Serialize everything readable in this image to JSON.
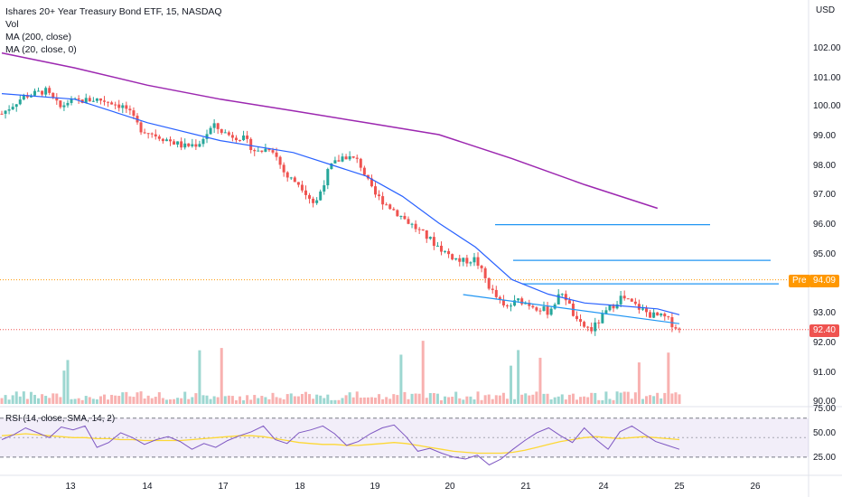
{
  "legend": {
    "title": "Ishares 20+ Year Treasury Bond ETF, 15, NASDAQ",
    "vol": "Vol",
    "ma200": "MA (200, close)",
    "ma20": "MA (20, close, 0)"
  },
  "rsi_legend": "RSI (14, close, SMA, 14, 2)",
  "currency": "USD",
  "tags": {
    "pre_label": "Pre",
    "pre_price": "94.09",
    "last_price": "92.40"
  },
  "colors": {
    "up": "#26a69a",
    "down": "#ef5350",
    "ma200": "#9c27b0",
    "ma20": "#2962ff",
    "hline": "#2196f3",
    "pre": "#ff9800",
    "rsi": "#7e57c2",
    "rsi_ma": "#fdd835",
    "rsi_band": "#7e57c2"
  },
  "chart_data": [
    {
      "type": "candlestick",
      "title": "Ishares 20+ Year Treasury Bond ETF, 15, NASDAQ",
      "x_ticks": [
        "13",
        "14",
        "17",
        "18",
        "19",
        "20",
        "21",
        "24",
        "25",
        "26"
      ],
      "y_ticks": [
        "102.00",
        "101.00",
        "100.00",
        "99.00",
        "98.00",
        "97.00",
        "96.00",
        "95.00",
        "93.00",
        "92.00",
        "91.00",
        "90.00"
      ],
      "ylim": [
        89.9,
        103.1
      ],
      "price_trace": [
        [
          0,
          99.7
        ],
        [
          3,
          100.3
        ],
        [
          6,
          100.5
        ],
        [
          8,
          99.9
        ],
        [
          9,
          100.1
        ],
        [
          13,
          100.2
        ],
        [
          15,
          100.1
        ],
        [
          17,
          99.9
        ],
        [
          19,
          99.2
        ],
        [
          21,
          99.0
        ],
        [
          23,
          98.8
        ],
        [
          25,
          98.6
        ],
        [
          27,
          98.7
        ],
        [
          29,
          99.3
        ],
        [
          31,
          99.0
        ],
        [
          33,
          98.9
        ],
        [
          35,
          98.4
        ],
        [
          37,
          98.6
        ],
        [
          39,
          97.6
        ],
        [
          41,
          97.3
        ],
        [
          43,
          96.6
        ],
        [
          45,
          97.9
        ],
        [
          47,
          98.3
        ],
        [
          49,
          98.1
        ],
        [
          51,
          97.0
        ],
        [
          53,
          96.6
        ],
        [
          55,
          96.2
        ],
        [
          57,
          95.8
        ],
        [
          59,
          95.4
        ],
        [
          61,
          95.0
        ],
        [
          63,
          94.7
        ],
        [
          65,
          94.8
        ],
        [
          67,
          93.8
        ],
        [
          69,
          93.1
        ],
        [
          71,
          93.4
        ],
        [
          73,
          93.2
        ],
        [
          75,
          93.0
        ],
        [
          77,
          93.7
        ],
        [
          79,
          92.6
        ],
        [
          81,
          92.4
        ],
        [
          83,
          93.0
        ],
        [
          85,
          93.5
        ],
        [
          87,
          93.2
        ],
        [
          89,
          92.9
        ],
        [
          91,
          92.8
        ],
        [
          93,
          92.4
        ]
      ],
      "ma200": [
        [
          0,
          101.8
        ],
        [
          10,
          101.3
        ],
        [
          20,
          100.7
        ],
        [
          30,
          100.2
        ],
        [
          40,
          99.8
        ],
        [
          50,
          99.4
        ],
        [
          60,
          99.0
        ],
        [
          70,
          98.2
        ],
        [
          80,
          97.3
        ],
        [
          90,
          96.5
        ]
      ],
      "ma20": [
        [
          0,
          100.4
        ],
        [
          10,
          100.2
        ],
        [
          20,
          99.4
        ],
        [
          30,
          98.8
        ],
        [
          40,
          98.4
        ],
        [
          50,
          97.6
        ],
        [
          55,
          96.9
        ],
        [
          60,
          96.0
        ],
        [
          65,
          95.2
        ],
        [
          70,
          94.1
        ],
        [
          75,
          93.6
        ],
        [
          80,
          93.3
        ],
        [
          85,
          93.2
        ],
        [
          90,
          93.1
        ],
        [
          93,
          92.9
        ]
      ],
      "horizontal_levels": [
        95.95,
        94.75,
        93.95
      ],
      "trendline": [
        [
          72,
          93.4
        ],
        [
          93,
          92.6
        ]
      ],
      "pre_market": 94.09,
      "last": 92.4
    },
    {
      "type": "line",
      "title": "RSI (14, close, SMA, 14, 2)",
      "y_ticks": [
        "75.00",
        "50.00",
        "25.00"
      ],
      "ylim": [
        15,
        80
      ],
      "bands": [
        70,
        30
      ],
      "series": [
        {
          "values": [
            48,
            53,
            60,
            55,
            50,
            61,
            58,
            62,
            40,
            45,
            55,
            50,
            43,
            48,
            51,
            46,
            38,
            44,
            40,
            47,
            52,
            56,
            62,
            48,
            44,
            55,
            58,
            62,
            54,
            42,
            46,
            54,
            60,
            63,
            51,
            36,
            39,
            34,
            30,
            28,
            32,
            22,
            28,
            38,
            47,
            55,
            60,
            52,
            45,
            60,
            48,
            38,
            56,
            62,
            54,
            46,
            42,
            38
          ]
        },
        {
          "values": [
            52,
            53,
            54,
            53,
            52,
            51,
            50,
            50,
            49,
            49,
            48,
            48,
            47,
            47,
            47,
            47,
            48,
            49,
            50,
            51,
            52,
            52,
            51,
            49,
            47,
            45,
            44,
            43,
            43,
            42,
            42,
            43,
            44,
            45,
            44,
            42,
            40,
            38,
            36,
            35,
            34,
            34,
            34,
            35,
            37,
            40,
            43,
            46,
            48,
            50,
            51,
            50,
            49,
            50,
            51,
            50,
            49,
            48
          ]
        }
      ]
    }
  ]
}
